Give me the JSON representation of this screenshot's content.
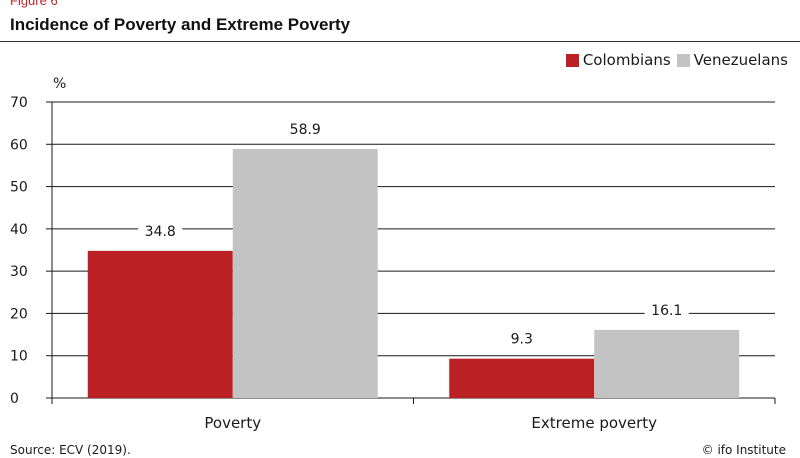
{
  "figure_label": "Figure 6",
  "chart_data": {
    "type": "bar",
    "title": "Incidence of Poverty and Extreme Poverty",
    "unit": "%",
    "categories": [
      "Poverty",
      "Extreme poverty"
    ],
    "series": [
      {
        "name": "Colombians",
        "values": [
          34.8,
          9.3
        ],
        "color": "#bb2025"
      },
      {
        "name": "Venezuelans",
        "values": [
          58.9,
          16.1
        ],
        "color": "#c3c3c3"
      }
    ],
    "ylim": [
      0,
      70
    ],
    "yticks": [
      0,
      10,
      20,
      30,
      40,
      50,
      60,
      70
    ],
    "grid": true,
    "legend_position": "top-right"
  },
  "source": "Source: ECV (2019).",
  "credit": "© ifo Institute"
}
